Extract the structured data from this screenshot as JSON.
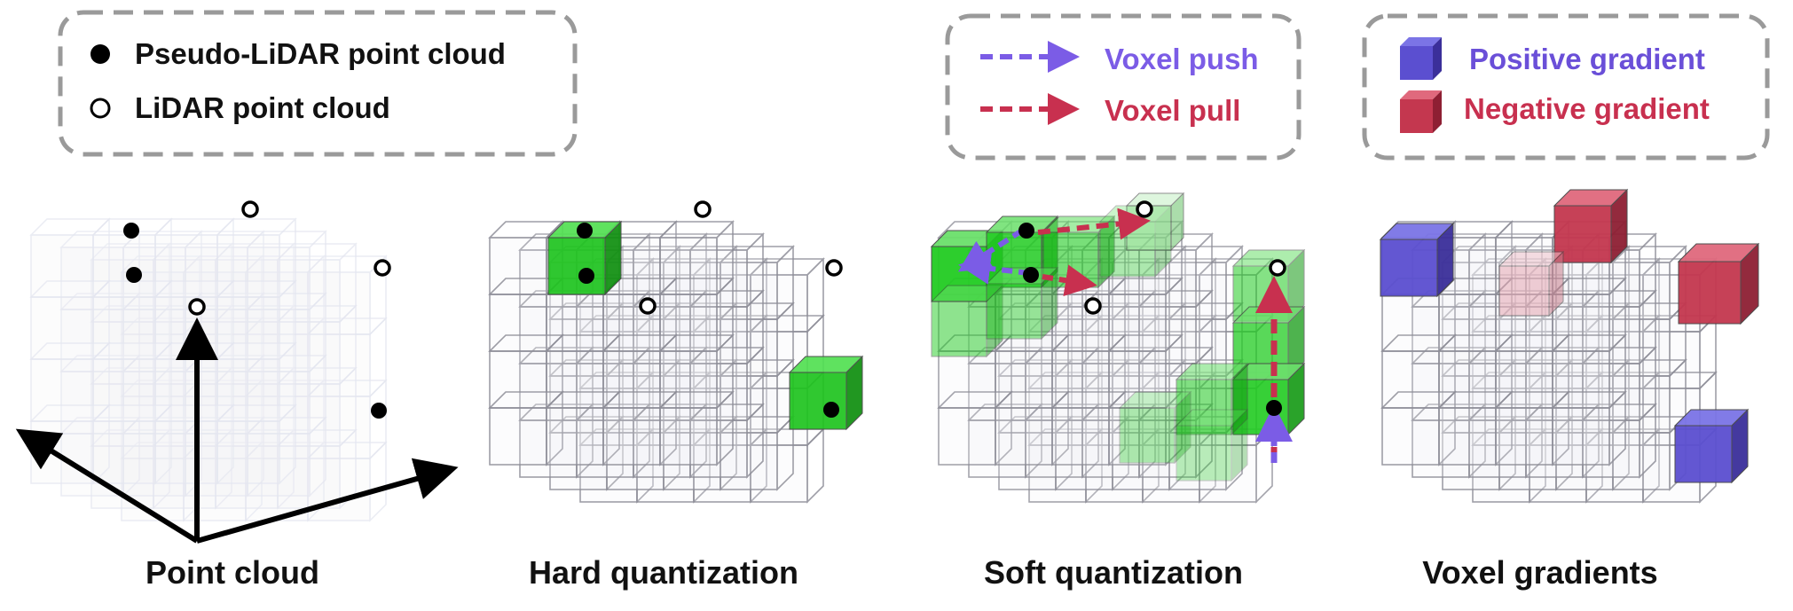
{
  "legend_points": {
    "pseudo_lidar": "Pseudo-LiDAR point cloud",
    "lidar": "LiDAR point cloud"
  },
  "legend_arrows": {
    "push": "Voxel push",
    "pull": "Voxel pull"
  },
  "legend_gradients": {
    "positive": "Positive gradient",
    "negative": "Negative gradient"
  },
  "panels": [
    {
      "title": "Point cloud"
    },
    {
      "title": "Hard quantization"
    },
    {
      "title": "Soft quantization"
    },
    {
      "title": "Voxel gradients"
    }
  ],
  "colors": {
    "push": "#7b5ce6",
    "pull": "#c8304f",
    "positive": "#5b4fd0",
    "negative": "#c4374f",
    "voxel_green": "#22cc22",
    "frame_gray": "#9a9a9a",
    "text_dark": "#111111"
  }
}
